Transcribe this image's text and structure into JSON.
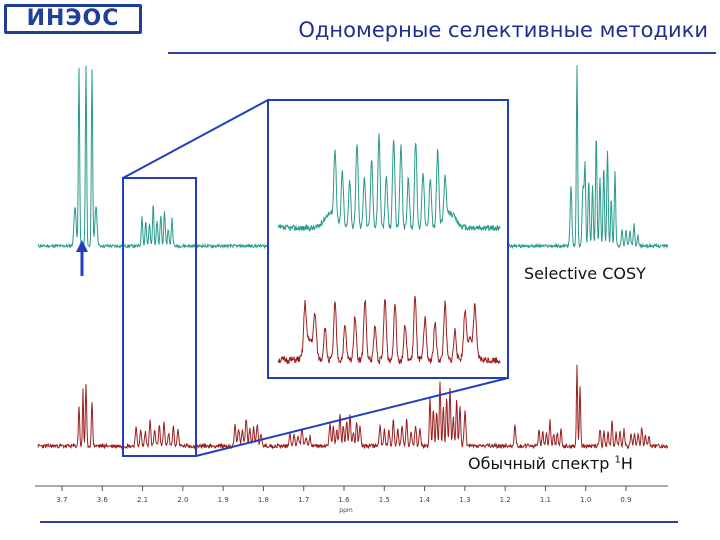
{
  "header": {
    "logo_text": "ИНЭОС",
    "title": "Одномерные селективные методики"
  },
  "labels": {
    "selective_cosy": "Selective COSY",
    "regular_spectrum": "Обычный спектр ",
    "regular_spectrum_isotope": "1",
    "regular_spectrum_nucleus": "H"
  },
  "colors": {
    "cosy_trace": "#2a9a8a",
    "proton_trace": "#9a2020",
    "frame": "#1f3fbf",
    "arrow": "#1f3fbf",
    "title": "#1f2f8f"
  },
  "chart_data": {
    "type": "line",
    "xlabel": "ppm",
    "x_ticks": [
      "3.7",
      "3.6",
      "2.1",
      "2.0",
      "1.9",
      "1.8",
      "1.7",
      "1.6",
      "1.5",
      "1.4",
      "1.3",
      "1.2",
      "1.1",
      "1.0",
      "0.9"
    ],
    "series": [
      {
        "name": "Selective COSY"
      },
      {
        "name": "Обычный спектр 1H"
      }
    ],
    "zoom_region": "2.1–2.0"
  }
}
